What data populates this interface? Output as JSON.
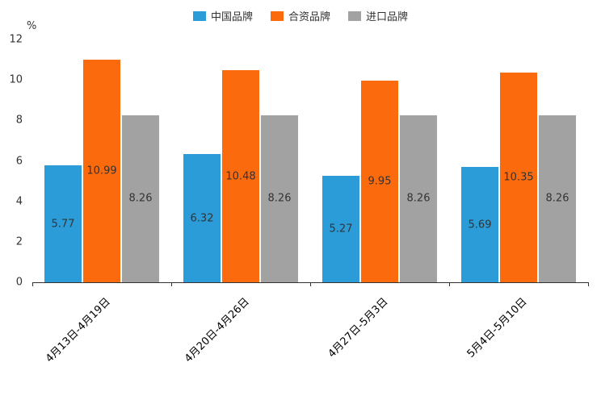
{
  "unit_label": "%",
  "chart_data": {
    "type": "bar",
    "title": "",
    "categories": [
      "4月13日-4月19日",
      "4月20日-4月26日",
      "4月27日-5月3日",
      "5月4日-5月10日"
    ],
    "series": [
      {
        "name": "中国品牌",
        "color": "#2B9CD8",
        "values": [
          5.77,
          6.32,
          5.27,
          5.69
        ]
      },
      {
        "name": "合资品牌",
        "color": "#FB6A0D",
        "values": [
          10.99,
          10.48,
          9.95,
          10.35
        ]
      },
      {
        "name": "进口品牌",
        "color": "#A2A2A2",
        "values": [
          8.26,
          8.26,
          8.26,
          8.26
        ]
      }
    ],
    "xlabel": "",
    "ylabel": "%",
    "ylim": [
      0,
      12
    ],
    "yticks": [
      0,
      2,
      4,
      6,
      8,
      10,
      12
    ],
    "grid": false,
    "legend_position": "top",
    "bar_label_position": "center"
  }
}
